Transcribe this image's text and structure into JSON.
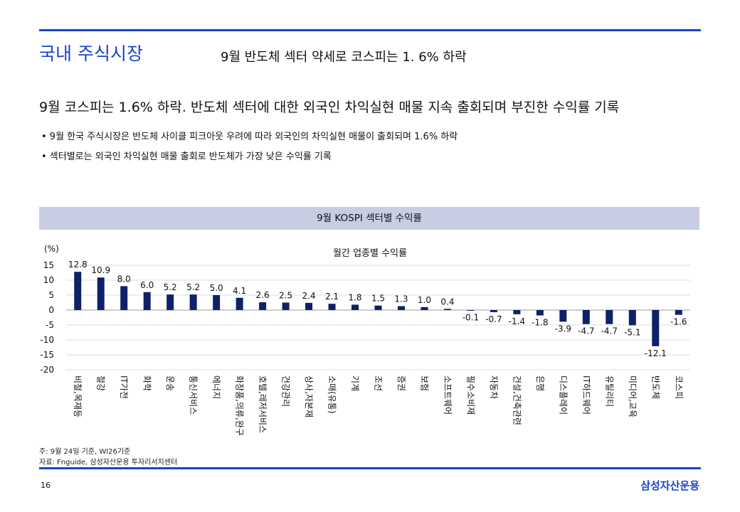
{
  "header": {
    "title": "국내 주식시장",
    "subtitle": "9월 반도체 섹터 약세로 코스피는 1. 6% 하락"
  },
  "headline": "9월 코스피는 1.6% 하락. 반도체 섹터에 대한 외국인 차익실현 매물 지속 출회되며 부진한 수익률 기록",
  "bullets": [
    "• 9월 한국 주식시장은 반도체 사이클 피크아웃 우려에 따라 외국인의 차익실현 매물이 출회되며 1.6% 하락",
    "• 섹터별로는 외국인 차익실현 매물 출회로 반도체가 가장 낮은 수익률 기록"
  ],
  "band_title": "9월 KOSPI 섹터별 수익률",
  "chart_data": {
    "type": "bar",
    "title": "월간 업종별 수익률",
    "ylabel": "(%)",
    "ylim": [
      -20,
      15
    ],
    "yticks": [
      15,
      10,
      5,
      0,
      -5,
      -10,
      -15,
      -20
    ],
    "grid": true,
    "bar_color": "#0d2266",
    "categories": [
      "비철,목재등",
      "철강",
      "IT가전",
      "화학",
      "운송",
      "통신서비스",
      "에너지",
      "화장품,의류,완구",
      "호텔,레저서비스",
      "건강관리",
      "상사,자본재",
      "소매(유통)",
      "기계",
      "조선",
      "증권",
      "보험",
      "소프트웨어",
      "필수소비재",
      "자동차",
      "건설,건축관련",
      "은행",
      "디스플레이",
      "IT하드웨어",
      "유틸리티",
      "미디어,교육",
      "반도체",
      "코스피"
    ],
    "values": [
      12.8,
      10.9,
      8.0,
      6.0,
      5.2,
      5.2,
      5.0,
      4.1,
      2.6,
      2.5,
      2.4,
      2.1,
      1.8,
      1.5,
      1.3,
      1.0,
      0.4,
      -0.1,
      -0.7,
      -1.4,
      -1.8,
      -3.9,
      -4.7,
      -4.7,
      -5.1,
      -12.1,
      -1.6
    ]
  },
  "footnotes": [
    "주: 9월 24일 기준, WI26기준",
    "자료: Fnguide, 삼성자산운용 투자리서치센터"
  ],
  "page_number": "16",
  "brand": "삼성자산운용"
}
